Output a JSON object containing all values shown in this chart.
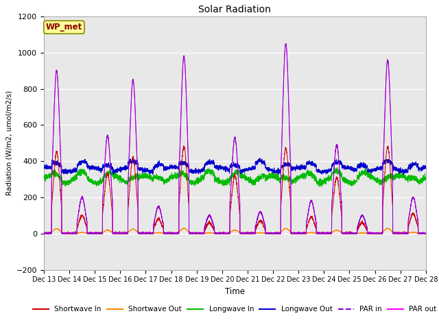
{
  "title": "Solar Radiation",
  "ylabel": "Radiation (W/m2, umol/m2/s)",
  "xlabel": "Time",
  "ylim": [
    -200,
    1200
  ],
  "yticks": [
    -200,
    0,
    200,
    400,
    600,
    800,
    1000,
    1200
  ],
  "n_days": 15,
  "points_per_day": 288,
  "legend_label": "WP_met",
  "legend_bg": "#ffff99",
  "legend_edge": "#888800",
  "legend_text_color": "#880000",
  "plot_bg": "#e8e8e8",
  "par_in_peaks": [
    900,
    200,
    540,
    850,
    150,
    980,
    100,
    530,
    120,
    1050,
    180,
    490,
    100,
    960,
    200
  ],
  "par_out_peaks": [
    900,
    200,
    540,
    850,
    150,
    980,
    100,
    530,
    120,
    1050,
    180,
    490,
    100,
    960,
    200
  ],
  "sw_in_peaks": [
    450,
    100,
    330,
    420,
    80,
    480,
    60,
    320,
    70,
    470,
    90,
    310,
    60,
    480,
    110
  ],
  "series": {
    "shortwave_in": {
      "color": "#cc0000",
      "label": "Shortwave In"
    },
    "shortwave_out": {
      "color": "#ff8800",
      "label": "Shortwave Out"
    },
    "longwave_in": {
      "color": "#00bb00",
      "label": "Longwave In"
    },
    "longwave_out": {
      "color": "#0000cc",
      "label": "Longwave Out"
    },
    "par_in": {
      "color": "#8800cc",
      "label": "PAR in"
    },
    "par_out": {
      "color": "#ff00ff",
      "label": "PAR out"
    }
  }
}
